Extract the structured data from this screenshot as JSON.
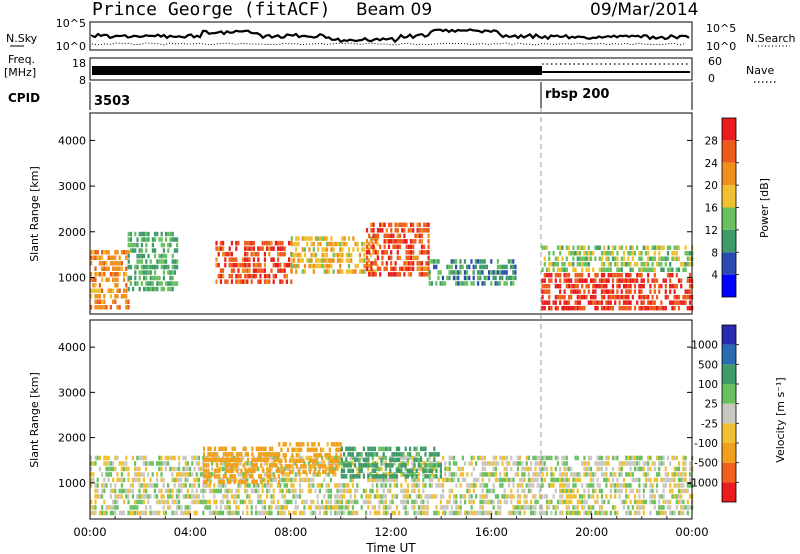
{
  "header": {
    "station": "Prince George (fitACF)",
    "beam": "Beam 09",
    "date": "09/Mar/2014"
  },
  "summary_panels": {
    "nsky": {
      "label": "N.Sky",
      "ticks": [
        "10^5",
        "10^0"
      ],
      "right_ticks": [
        "10^5",
        "10^0"
      ],
      "right_label": "N.Search"
    },
    "freq": {
      "label_lines": [
        "Freq.",
        "[MHz]"
      ],
      "ticks": [
        "18",
        "8"
      ],
      "right_ticks": [
        "60",
        "0"
      ],
      "right_label": "Nave"
    },
    "cpid": {
      "label": "CPID",
      "segments": [
        "3503",
        "rbsp 200"
      ]
    }
  },
  "chart_data": [
    {
      "type": "heatmap",
      "title": "",
      "xlabel": "",
      "ylabel": "Slant Range [km]",
      "xlim": [
        0,
        24
      ],
      "ylim": [
        200,
        4600
      ],
      "y_ticks": [
        1000,
        2000,
        3000,
        4000
      ],
      "colorbar": {
        "label": "Power [dB]",
        "levels": [
          0,
          4,
          8,
          12,
          16,
          20,
          24,
          28,
          32
        ],
        "tick_labels": [
          "4",
          "8",
          "12",
          "16",
          "20",
          "24",
          "28"
        ],
        "colors": [
          "#0000ff",
          "#2a4cb0",
          "#3f9a6a",
          "#68c060",
          "#f0c030",
          "#f0901c",
          "#ee5a1c",
          "#e81c1c"
        ]
      },
      "echo_regions": [
        {
          "t0": 0.0,
          "t1": 1.5,
          "r0": 300,
          "r1": 1600,
          "value": 22
        },
        {
          "t0": 1.5,
          "t1": 3.5,
          "r0": 700,
          "r1": 2000,
          "value": 12
        },
        {
          "t0": 5.0,
          "t1": 8.0,
          "r0": 900,
          "r1": 1800,
          "value": 27
        },
        {
          "t0": 8.0,
          "t1": 11.5,
          "r0": 1100,
          "r1": 1900,
          "value": 19
        },
        {
          "t0": 11.0,
          "t1": 13.5,
          "r0": 1000,
          "r1": 2200,
          "value": 27
        },
        {
          "t0": 13.5,
          "t1": 17.0,
          "r0": 800,
          "r1": 1400,
          "value": 10
        },
        {
          "t0": 18.0,
          "t1": 24.0,
          "r0": 300,
          "r1": 1100,
          "value": 28
        },
        {
          "t0": 18.0,
          "t1": 24.0,
          "r0": 1100,
          "r1": 1700,
          "value": 15
        }
      ]
    },
    {
      "type": "heatmap",
      "title": "",
      "xlabel": "Time UT",
      "ylabel": "Slant Range [km]",
      "xlim": [
        0,
        24
      ],
      "ylim": [
        200,
        4600
      ],
      "y_ticks": [
        1000,
        2000,
        3000,
        4000
      ],
      "x_tick_labels": [
        "00:00",
        "04:00",
        "08:00",
        "12:00",
        "16:00",
        "20:00",
        "00:00"
      ],
      "x_ticks": [
        0,
        4,
        8,
        12,
        16,
        20,
        24
      ],
      "colorbar": {
        "label": "Velocity [m s⁻¹]",
        "levels": [
          -1500,
          -1000,
          -500,
          -100,
          -25,
          25,
          100,
          500,
          1000,
          1500
        ],
        "tick_labels": [
          "1000",
          "500",
          "100",
          "25",
          "-25",
          "-100",
          "-500",
          "-1000"
        ],
        "colors": [
          "#e81c1c",
          "#f0601c",
          "#f0a01c",
          "#f0c030",
          "#c8c8c0",
          "#68c060",
          "#3f9a6a",
          "#2a6ab0",
          "#2a2ab0"
        ]
      },
      "echo_regions": [
        {
          "t0": 0.0,
          "t1": 18.0,
          "r0": 300,
          "r1": 1600,
          "value": 0
        },
        {
          "t0": 4.5,
          "t1": 7.5,
          "r0": 1000,
          "r1": 1800,
          "value": -200
        },
        {
          "t0": 7.5,
          "t1": 10.0,
          "r0": 1200,
          "r1": 1900,
          "value": -150
        },
        {
          "t0": 10.0,
          "t1": 14.0,
          "r0": 1100,
          "r1": 1800,
          "value": 150
        },
        {
          "t0": 18.0,
          "t1": 24.0,
          "r0": 300,
          "r1": 1600,
          "value": 0
        }
      ]
    }
  ]
}
